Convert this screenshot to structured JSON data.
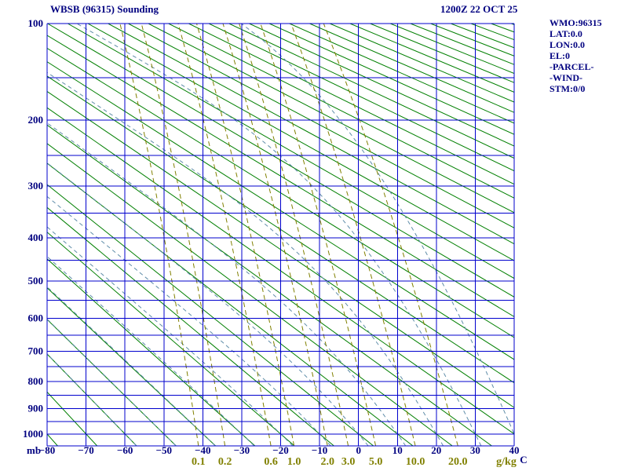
{
  "header": {
    "title": "WBSB (96315) Sounding",
    "datetime": "1200Z 22 OCT 25"
  },
  "info_panel": {
    "lines": [
      "WMO:96315",
      "LAT:0.0",
      "LON:0.0",
      "EL:0",
      "-PARCEL-",
      "-WIND-",
      "STM:0/0"
    ]
  },
  "colors": {
    "text": "#000080",
    "grid": "#0000cd",
    "dry_adiabat": "#007f00",
    "moist_adiabat": "#5e8ca8",
    "mixing_ratio": "#808000",
    "background": "#ffffff"
  },
  "chart_data": {
    "type": "stuve_thermodynamic_diagram",
    "title": "WBSB (96315) Sounding",
    "valid_time": "1200Z 22 OCT 25",
    "station": {
      "id": "WBSB",
      "wmo": "96315",
      "lat": 0.0,
      "lon": 0.0,
      "elevation": 0
    },
    "plotted_trace": "none",
    "x_axis": {
      "unit_label": "C",
      "range_c": [
        -80,
        40
      ],
      "ticks_c": [
        -80,
        -70,
        -60,
        -50,
        -40,
        -30,
        -20,
        -10,
        0,
        10,
        20,
        30,
        40
      ]
    },
    "y_axis": {
      "unit_label": "mb",
      "scale": "pressure^0.2857 (Stuve)",
      "range_mb": [
        100,
        1050
      ],
      "tick_labels_mb": [
        100,
        200,
        300,
        400,
        500,
        600,
        700,
        800,
        900,
        1000
      ]
    },
    "isobars_mb": [
      100,
      150,
      200,
      250,
      300,
      350,
      400,
      450,
      500,
      550,
      600,
      650,
      700,
      750,
      800,
      850,
      900,
      950,
      1000,
      1050
    ],
    "isotherms_c": [
      -80,
      -70,
      -60,
      -50,
      -40,
      -30,
      -20,
      -10,
      0,
      10,
      20,
      30,
      40
    ],
    "dry_adiabats_theta_c": {
      "min_c": -80,
      "max_c": 340,
      "step_c": 10
    },
    "moist_adiabats_thetaw_c": [
      -60,
      -50,
      -40,
      -30,
      -20,
      -10,
      0,
      10,
      20,
      30,
      40
    ],
    "mixing_ratio_gkg": [
      0.1,
      0.2,
      0.6,
      1.0,
      2.0,
      3.0,
      5.0,
      10.0,
      20.0
    ],
    "mixing_ratio_unit_label": "g/kg",
    "legend": "grid=isobars/isotherms(blue), solid green=dry adiabats, dashed blue-gray=moist adiabats, dashed olive=mixing ratio lines"
  }
}
